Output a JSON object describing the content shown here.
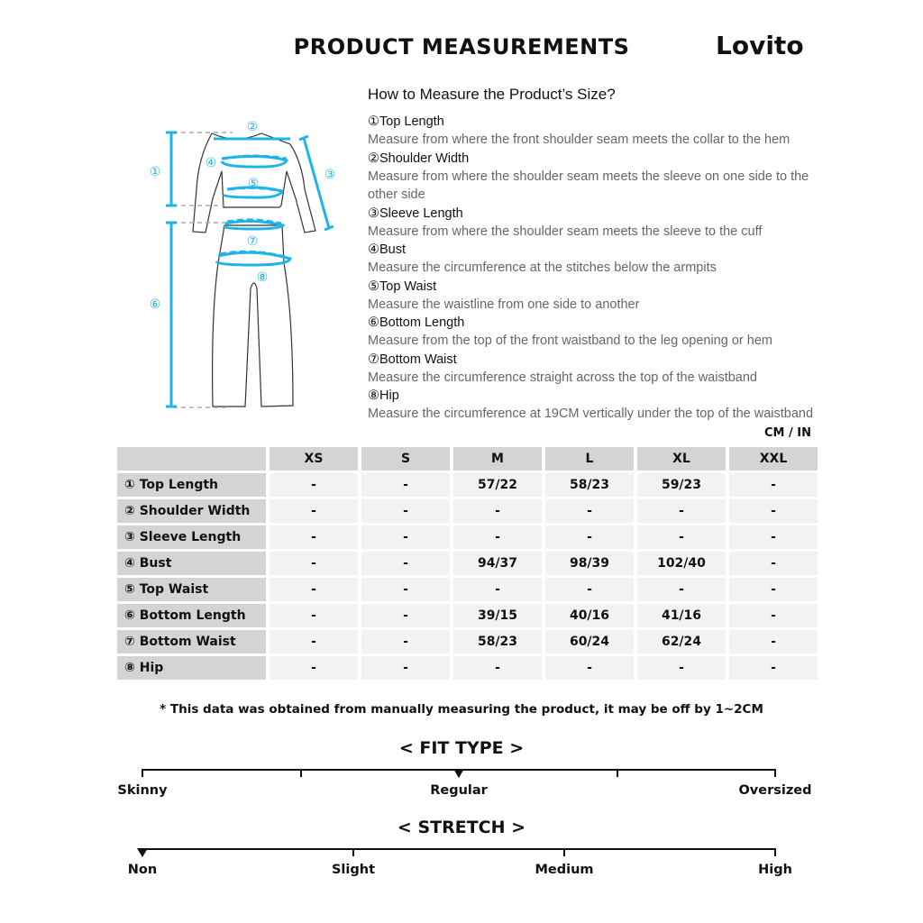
{
  "header": {
    "title": "PRODUCT MEASUREMENTS",
    "brand": "Lovito"
  },
  "guide": {
    "heading": "How to Measure the Product’s Size?",
    "items": [
      {
        "title": "①Top Length",
        "desc": "Measure from where the front shoulder seam meets the collar to the hem"
      },
      {
        "title": "②Shoulder Width",
        "desc": "Measure from where the shoulder seam meets the sleeve on one side to the other side"
      },
      {
        "title": "③Sleeve Length",
        "desc": "Measure from where the shoulder seam meets the sleeve to the cuff"
      },
      {
        "title": "④Bust",
        "desc": "Measure the circumference at the stitches below the armpits"
      },
      {
        "title": "⑤Top Waist",
        "desc": "Measure the waistline from one side to another"
      },
      {
        "title": "⑥Bottom Length",
        "desc": "Measure from the top of the front waistband to the leg opening or hem"
      },
      {
        "title": "⑦Bottom Waist",
        "desc": "Measure the circumference straight across the top of the waistband"
      },
      {
        "title": "⑧Hip",
        "desc": "Measure the circumference at 19CM vertically under the top of the waistband"
      }
    ],
    "diagram_labels": [
      "①",
      "②",
      "③",
      "④",
      "⑤",
      "⑥",
      "⑦",
      "⑧"
    ],
    "accent_color": "#1eb4ea"
  },
  "table": {
    "unit": "CM / IN",
    "sizes": [
      "XS",
      "S",
      "M",
      "L",
      "XL",
      "XXL"
    ],
    "rows": [
      {
        "label": "① Top Length",
        "values": [
          "-",
          "-",
          "57/22",
          "58/23",
          "59/23",
          "-"
        ]
      },
      {
        "label": "② Shoulder Width",
        "values": [
          "-",
          "-",
          "-",
          "-",
          "-",
          "-"
        ]
      },
      {
        "label": "③ Sleeve Length",
        "values": [
          "-",
          "-",
          "-",
          "-",
          "-",
          "-"
        ]
      },
      {
        "label": "④ Bust",
        "values": [
          "-",
          "-",
          "94/37",
          "98/39",
          "102/40",
          "-"
        ]
      },
      {
        "label": "⑤ Top Waist",
        "values": [
          "-",
          "-",
          "-",
          "-",
          "-",
          "-"
        ]
      },
      {
        "label": "⑥ Bottom Length",
        "values": [
          "-",
          "-",
          "39/15",
          "40/16",
          "41/16",
          "-"
        ]
      },
      {
        "label": "⑦ Bottom Waist",
        "values": [
          "-",
          "-",
          "58/23",
          "60/24",
          "62/24",
          "-"
        ]
      },
      {
        "label": "⑧ Hip",
        "values": [
          "-",
          "-",
          "-",
          "-",
          "-",
          "-"
        ]
      }
    ]
  },
  "note": "* This data was obtained from manually measuring the product, it may be off by 1~2CM",
  "fit": {
    "title": "< FIT TYPE >",
    "labels": [
      "Skinny",
      "Regular",
      "Oversized"
    ],
    "selected": "Regular",
    "selected_position": 0.5
  },
  "stretch": {
    "title": "< STRETCH >",
    "labels": [
      "Non",
      "Slight",
      "Medium",
      "High"
    ],
    "selected": "Non",
    "selected_position": 0
  }
}
